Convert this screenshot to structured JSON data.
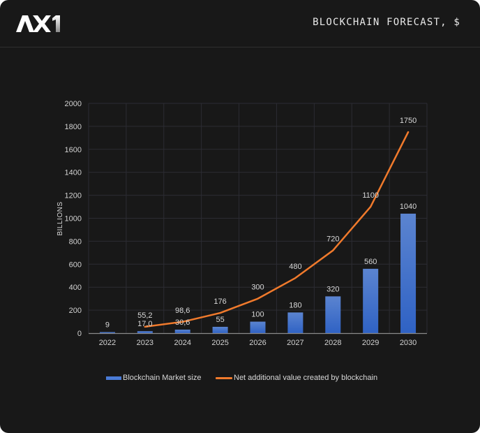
{
  "header": {
    "logo_text": "AX1",
    "title": "BLOCKCHAIN FORECAST, $"
  },
  "colors": {
    "background": "#181818",
    "bar": "#4a7bd6",
    "line": "#f07a2c",
    "grid": "#2c2c33",
    "axis": "#8a8a8a"
  },
  "chart_data": {
    "type": "bar",
    "title": "BLOCKCHAIN FORECAST, $",
    "xlabel": "",
    "ylabel": "BILLIONS",
    "ylim": [
      0,
      2000
    ],
    "yticks": [
      0,
      200,
      400,
      600,
      800,
      1000,
      1200,
      1400,
      1600,
      1800,
      2000
    ],
    "grid": true,
    "legend_position": "bottom-center",
    "categories": [
      "2022",
      "2023",
      "2024",
      "2025",
      "2026",
      "2027",
      "2028",
      "2029",
      "2030"
    ],
    "series": [
      {
        "name": "Blockchain Market size",
        "type": "bar",
        "values": [
          9,
          17.0,
          30.6,
          55,
          100,
          180,
          320,
          560,
          1040
        ],
        "labels": [
          "9",
          "17,0",
          "30,6",
          "55",
          "100",
          "180",
          "320",
          "560",
          "1040"
        ]
      },
      {
        "name": "Net additional value created by blockchain",
        "type": "line",
        "values": [
          null,
          55.2,
          98.6,
          176,
          300,
          480,
          720,
          1100,
          1750
        ],
        "labels": [
          "",
          "55,2",
          "98,6",
          "176",
          "300",
          "480",
          "720",
          "1100",
          "1750"
        ]
      }
    ]
  }
}
